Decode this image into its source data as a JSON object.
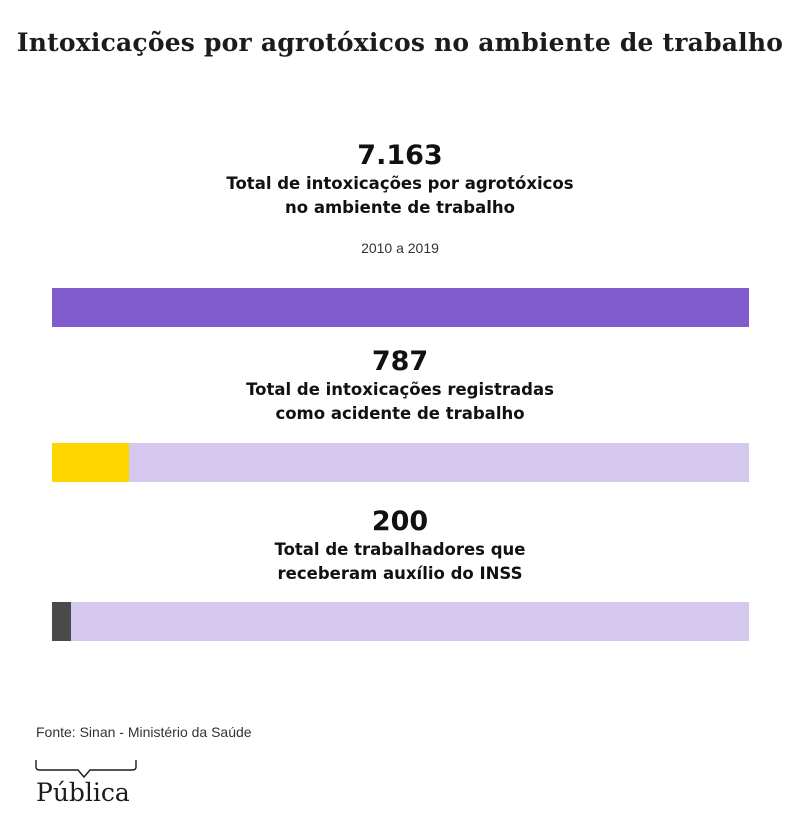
{
  "title": "Intoxicações por agrotóxicos no ambiente de trabalho",
  "period": "2010 a 2019",
  "source": "Fonte: Sinan - Ministério da Saúde",
  "brand": "Pública",
  "colors": {
    "total": "#7f5bcc",
    "acidente": "#ffd500",
    "inss": "#4a4a4a",
    "track": "#d4c8ee"
  },
  "chart_data": {
    "type": "bar",
    "title": "Intoxicações por agrotóxicos no ambiente de trabalho",
    "categories": [
      "Total de intoxicações por agrotóxicos no ambiente de trabalho",
      "Total de intoxicações registradas como acidente de trabalho",
      "Total de trabalhadores que receberam auxílio do INSS"
    ],
    "values": [
      7163,
      787,
      200
    ],
    "max": 7163,
    "items": [
      {
        "value_label": "7.163",
        "value": 7163,
        "label_line1": "Total de intoxicações por agrotóxicos",
        "label_line2": "no ambiente de trabalho",
        "color": "#7f5bcc"
      },
      {
        "value_label": "787",
        "value": 787,
        "label_line1": "Total de intoxicações registradas",
        "label_line2": "como acidente de trabalho",
        "color": "#ffd500"
      },
      {
        "value_label": "200",
        "value": 200,
        "label_line1": "Total de trabalhadores que",
        "label_line2": "receberam auxílio do INSS",
        "color": "#4a4a4a"
      }
    ]
  }
}
